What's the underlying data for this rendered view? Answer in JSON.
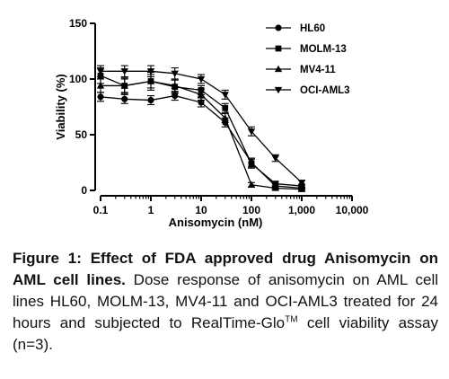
{
  "chart_data": {
    "type": "scatter",
    "xscale": "log",
    "xlim": [
      0.1,
      10000
    ],
    "ylim": [
      0,
      150
    ],
    "xlabel": "Anisomycin (nM)",
    "ylabel": "Viability (%)",
    "xticks": [
      0.1,
      1,
      10,
      100,
      1000,
      10000
    ],
    "xtick_labels": [
      "0.1",
      "1",
      "10",
      "100",
      "1,000",
      "10,000"
    ],
    "yticks": [
      0,
      50,
      100,
      150
    ],
    "ytick_labels": [
      "0",
      "50",
      "100",
      "150"
    ],
    "legend_position": "top-right",
    "x": [
      0.1,
      0.3,
      1,
      3,
      10,
      30,
      100,
      300,
      1000
    ],
    "series": [
      {
        "name": "HL60",
        "marker": "circle",
        "values": [
          84,
          82,
          81,
          85,
          79,
          61,
          25,
          4,
          2
        ],
        "errors": [
          4,
          4,
          4,
          4,
          4,
          4,
          4,
          2,
          1
        ]
      },
      {
        "name": "MOLM-13",
        "marker": "square",
        "values": [
          103,
          94,
          98,
          93,
          90,
          74,
          24,
          6,
          4
        ],
        "errors": [
          7,
          7,
          8,
          6,
          4,
          4,
          4,
          2,
          1
        ]
      },
      {
        "name": "MV4-11",
        "marker": "triangle-up",
        "values": [
          94,
          94,
          98,
          94,
          86,
          65,
          5,
          2,
          1
        ],
        "errors": [
          6,
          6,
          6,
          6,
          5,
          4,
          2,
          1,
          1
        ]
      },
      {
        "name": "OCI-AML3",
        "marker": "triangle-down",
        "values": [
          107,
          107,
          107,
          105,
          100,
          86,
          53,
          29,
          7
        ],
        "errors": [
          5,
          5,
          5,
          5,
          4,
          4,
          4,
          3,
          2
        ]
      }
    ]
  },
  "caption": {
    "bold_text": "Figure 1: Effect of FDA approved drug Anisomycin on AML cell lines.",
    "text_before_sup": " Dose response of anisomycin on AML cell lines HL60, MOLM-13, MV4-11 and OCI-AML3 treated for 24 hours and subjected to RealTime-Glo",
    "sup": "TM",
    "text_after_sup": " cell viability assay (n=3)."
  }
}
